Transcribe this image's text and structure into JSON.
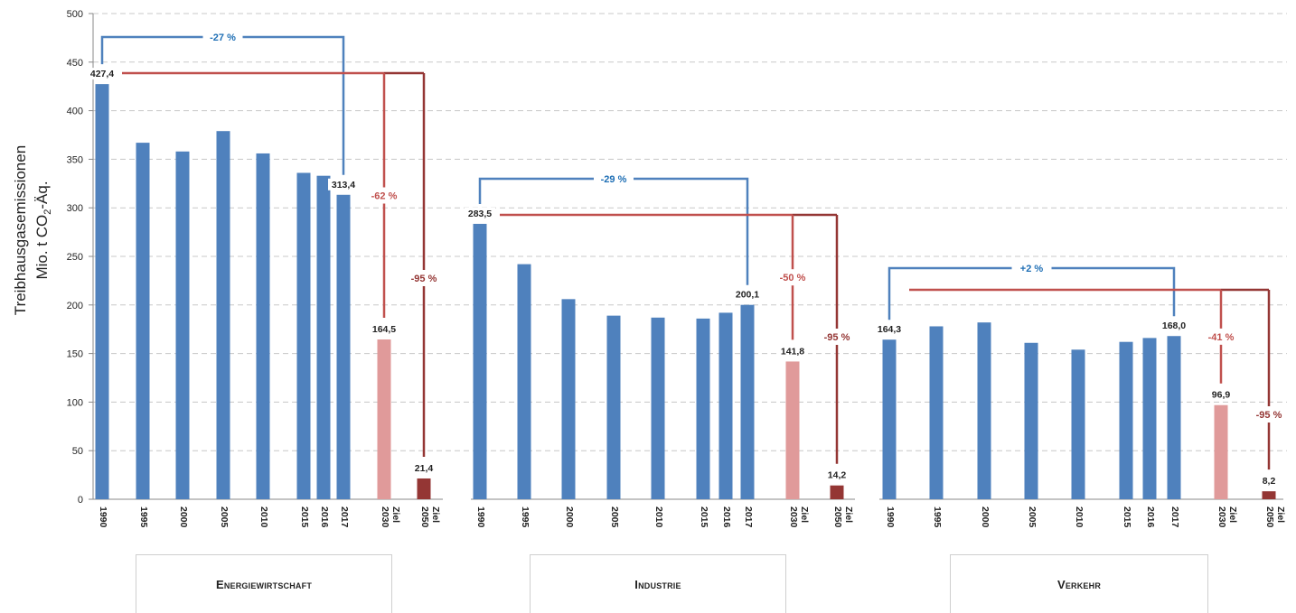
{
  "chart_data": {
    "type": "bar",
    "y_axis": {
      "label_line1": "Treibhausgasemissionen",
      "label_line2_pre": "Mio. t CO",
      "label_line2_sub": "2",
      "label_line2_post": "-Äq.",
      "ylim": [
        0,
        500
      ],
      "ticks": [
        0,
        50,
        100,
        150,
        200,
        250,
        300,
        350,
        400,
        450,
        500
      ],
      "grid": true
    },
    "colors": {
      "historic": "#4f81bd",
      "target2030": "#e09a9a",
      "target2050": "#943634",
      "bracket_blue": "#4f81bd",
      "bracket_red": "#c0504d",
      "bracket_darkred": "#943634",
      "text_blue": "#1f6fb5",
      "text_red": "#c0504d"
    },
    "groups": [
      {
        "name": "Energiewirtschaft",
        "bars": [
          {
            "year": "1990",
            "value": 427.4,
            "kind": "historic",
            "label": "427,4"
          },
          {
            "year": "1995",
            "value": 367,
            "kind": "historic"
          },
          {
            "year": "2000",
            "value": 358,
            "kind": "historic"
          },
          {
            "year": "2005",
            "value": 379,
            "kind": "historic"
          },
          {
            "year": "2010",
            "value": 356,
            "kind": "historic"
          },
          {
            "year": "2015",
            "value": 336,
            "kind": "historic"
          },
          {
            "year": "2016",
            "value": 333,
            "kind": "historic"
          },
          {
            "year": "2017",
            "value": 313.4,
            "kind": "historic",
            "label": "313,4"
          },
          {
            "year": "2030",
            "suffix": "Ziel",
            "value": 164.5,
            "kind": "target2030",
            "label": "164,5"
          },
          {
            "year": "2050",
            "suffix": "Ziel",
            "value": 21.4,
            "kind": "target2050",
            "label": "21,4"
          }
        ],
        "changes": {
          "to2017": "-27 %",
          "to2030": "-62 %",
          "to2050": "-95 %"
        }
      },
      {
        "name": "Industrie",
        "bars": [
          {
            "year": "1990",
            "value": 283.5,
            "kind": "historic",
            "label": "283,5"
          },
          {
            "year": "1995",
            "value": 242,
            "kind": "historic"
          },
          {
            "year": "2000",
            "value": 206,
            "kind": "historic"
          },
          {
            "year": "2005",
            "value": 189,
            "kind": "historic"
          },
          {
            "year": "2010",
            "value": 187,
            "kind": "historic"
          },
          {
            "year": "2015",
            "value": 186,
            "kind": "historic"
          },
          {
            "year": "2016",
            "value": 192,
            "kind": "historic"
          },
          {
            "year": "2017",
            "value": 200.1,
            "kind": "historic",
            "label": "200,1"
          },
          {
            "year": "2030",
            "suffix": "Ziel",
            "value": 141.8,
            "kind": "target2030",
            "label": "141,8"
          },
          {
            "year": "2050",
            "suffix": "Ziel",
            "value": 14.2,
            "kind": "target2050",
            "label": "14,2"
          }
        ],
        "changes": {
          "to2017": "-29 %",
          "to2030": "-50 %",
          "to2050": "-95 %"
        }
      },
      {
        "name": "Verkehr",
        "bars": [
          {
            "year": "1990",
            "value": 164.3,
            "kind": "historic",
            "label": "164,3"
          },
          {
            "year": "1995",
            "value": 178,
            "kind": "historic"
          },
          {
            "year": "2000",
            "value": 182,
            "kind": "historic"
          },
          {
            "year": "2005",
            "value": 161,
            "kind": "historic"
          },
          {
            "year": "2010",
            "value": 154,
            "kind": "historic"
          },
          {
            "year": "2015",
            "value": 162,
            "kind": "historic"
          },
          {
            "year": "2016",
            "value": 166,
            "kind": "historic"
          },
          {
            "year": "2017",
            "value": 168.0,
            "kind": "historic",
            "label": "168,0"
          },
          {
            "year": "2030",
            "suffix": "Ziel",
            "value": 96.9,
            "kind": "target2030",
            "label": "96,9"
          },
          {
            "year": "2050",
            "suffix": "Ziel",
            "value": 8.2,
            "kind": "target2050",
            "label": "8,2"
          }
        ],
        "changes": {
          "to2017": "+2 %",
          "to2030": "-41 %",
          "to2050": "-95 %"
        }
      }
    ]
  }
}
